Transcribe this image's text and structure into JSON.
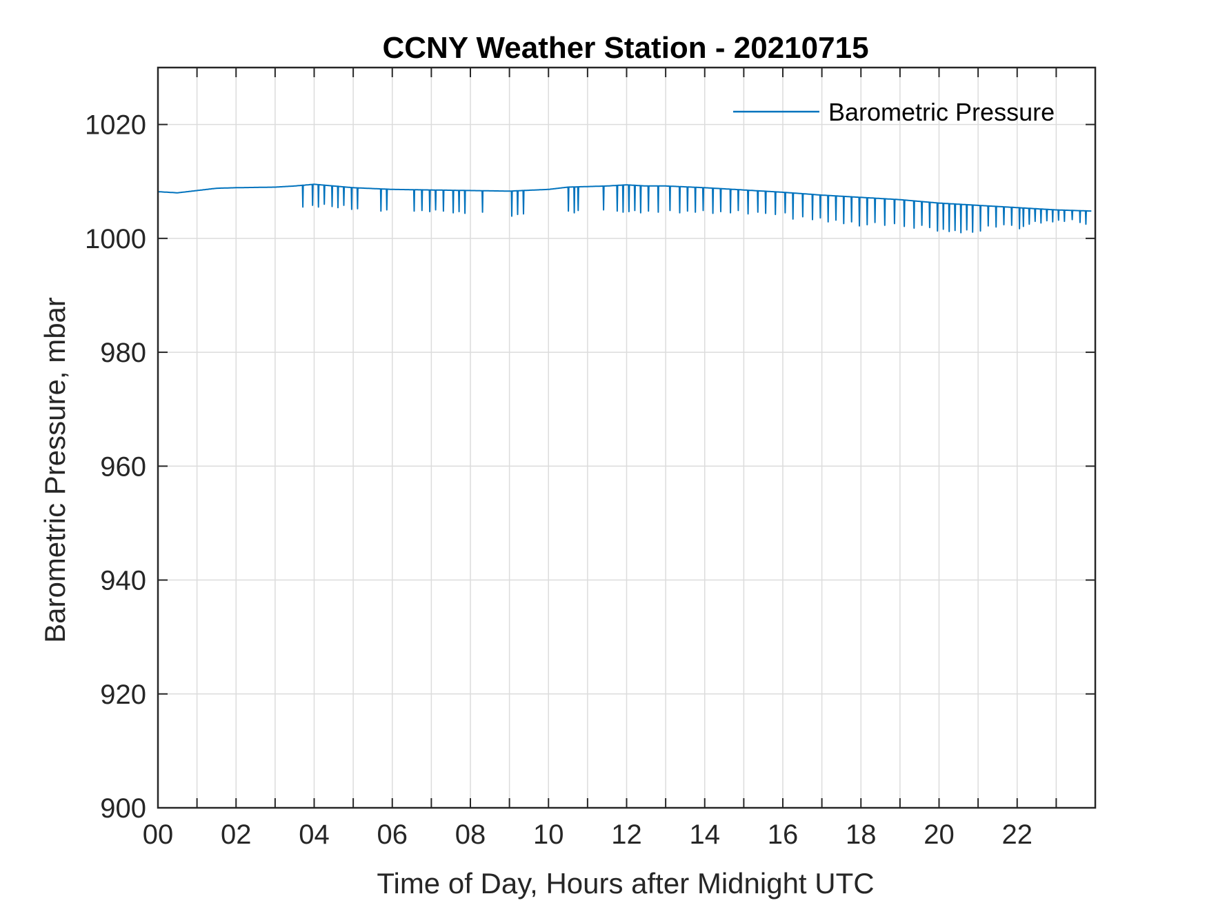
{
  "chart_data": {
    "type": "line",
    "title": "CCNY Weather Station - 20210715",
    "xlabel": "Time of Day, Hours after Midnight UTC",
    "ylabel": "Barometric Pressure, mbar",
    "xlim": [
      0,
      24
    ],
    "ylim": [
      900,
      1030
    ],
    "xticks": [
      0,
      2,
      4,
      6,
      8,
      10,
      12,
      14,
      16,
      18,
      20,
      22
    ],
    "xtick_labels": [
      "00",
      "02",
      "04",
      "06",
      "08",
      "10",
      "12",
      "14",
      "16",
      "18",
      "20",
      "22"
    ],
    "yticks": [
      900,
      920,
      940,
      960,
      980,
      1000,
      1020
    ],
    "ytick_labels": [
      "900",
      "920",
      "940",
      "960",
      "980",
      "1000",
      "1020"
    ],
    "grid": true,
    "legend_position": "top-right",
    "series": [
      {
        "name": "Barometric Pressure",
        "color": "#0072BD",
        "x": [
          0,
          0.5,
          1,
          1.5,
          2,
          3,
          3.5,
          4,
          4.5,
          5,
          6,
          7,
          8,
          9,
          10,
          10.5,
          11,
          11.5,
          12,
          12.5,
          13,
          14,
          15,
          16,
          17,
          18,
          19,
          20,
          21,
          22,
          23,
          23.9
        ],
        "values": [
          1008.2,
          1008,
          1008.4,
          1008.8,
          1008.9,
          1009,
          1009.2,
          1009.5,
          1009.2,
          1008.9,
          1008.6,
          1008.5,
          1008.4,
          1008.3,
          1008.6,
          1009,
          1009.1,
          1009.2,
          1009.4,
          1009.2,
          1009.2,
          1008.9,
          1008.5,
          1008.1,
          1007.6,
          1007.2,
          1006.8,
          1006.2,
          1005.8,
          1005.4,
          1005,
          1004.8
        ],
        "dips": [
          {
            "x": 3.7,
            "min": 1005.5
          },
          {
            "x": 3.95,
            "min": 1005.8
          },
          {
            "x": 4.1,
            "min": 1005.5
          },
          {
            "x": 4.25,
            "min": 1006
          },
          {
            "x": 4.45,
            "min": 1005.6
          },
          {
            "x": 4.6,
            "min": 1005.4
          },
          {
            "x": 4.75,
            "min": 1005.8
          },
          {
            "x": 4.95,
            "min": 1005.1
          },
          {
            "x": 5.1,
            "min": 1005.2
          },
          {
            "x": 5.7,
            "min": 1004.8
          },
          {
            "x": 5.85,
            "min": 1005
          },
          {
            "x": 6.55,
            "min": 1004.8
          },
          {
            "x": 6.75,
            "min": 1004.9
          },
          {
            "x": 6.95,
            "min": 1004.7
          },
          {
            "x": 7.1,
            "min": 1005
          },
          {
            "x": 7.3,
            "min": 1004.8
          },
          {
            "x": 7.55,
            "min": 1004.5
          },
          {
            "x": 7.7,
            "min": 1004.7
          },
          {
            "x": 7.85,
            "min": 1004.4
          },
          {
            "x": 8.3,
            "min": 1004.6
          },
          {
            "x": 9.05,
            "min": 1003.9
          },
          {
            "x": 9.2,
            "min": 1004.2
          },
          {
            "x": 9.35,
            "min": 1004.3
          },
          {
            "x": 10.5,
            "min": 1004.8
          },
          {
            "x": 10.65,
            "min": 1004.5
          },
          {
            "x": 10.75,
            "min": 1004.9
          },
          {
            "x": 11.4,
            "min": 1005
          },
          {
            "x": 11.75,
            "min": 1004.8
          },
          {
            "x": 11.9,
            "min": 1004.6
          },
          {
            "x": 12.05,
            "min": 1004.7
          },
          {
            "x": 12.2,
            "min": 1004.9
          },
          {
            "x": 12.35,
            "min": 1004.5
          },
          {
            "x": 12.55,
            "min": 1004.8
          },
          {
            "x": 12.8,
            "min": 1004.6
          },
          {
            "x": 13.1,
            "min": 1004.9
          },
          {
            "x": 13.35,
            "min": 1004.5
          },
          {
            "x": 13.55,
            "min": 1004.8
          },
          {
            "x": 13.75,
            "min": 1004.6
          },
          {
            "x": 13.95,
            "min": 1004.9
          },
          {
            "x": 14.2,
            "min": 1004.4
          },
          {
            "x": 14.4,
            "min": 1004.7
          },
          {
            "x": 14.65,
            "min": 1004.5
          },
          {
            "x": 14.85,
            "min": 1004.9
          },
          {
            "x": 15.1,
            "min": 1004.3
          },
          {
            "x": 15.35,
            "min": 1004.6
          },
          {
            "x": 15.55,
            "min": 1004.4
          },
          {
            "x": 15.8,
            "min": 1004.2
          },
          {
            "x": 16.05,
            "min": 1004.5
          },
          {
            "x": 16.25,
            "min": 1003.4
          },
          {
            "x": 16.5,
            "min": 1003.8
          },
          {
            "x": 16.75,
            "min": 1003.3
          },
          {
            "x": 16.95,
            "min": 1003.6
          },
          {
            "x": 17.15,
            "min": 1002.9
          },
          {
            "x": 17.35,
            "min": 1003.2
          },
          {
            "x": 17.55,
            "min": 1002.6
          },
          {
            "x": 17.75,
            "min": 1002.9
          },
          {
            "x": 17.95,
            "min": 1002.2
          },
          {
            "x": 18.15,
            "min": 1002.4
          },
          {
            "x": 18.35,
            "min": 1002.8
          },
          {
            "x": 18.6,
            "min": 1002.3
          },
          {
            "x": 18.85,
            "min": 1002.6
          },
          {
            "x": 19.1,
            "min": 1002.1
          },
          {
            "x": 19.35,
            "min": 1001.8
          },
          {
            "x": 19.55,
            "min": 1002.3
          },
          {
            "x": 19.75,
            "min": 1001.9
          },
          {
            "x": 19.95,
            "min": 1001.3
          },
          {
            "x": 20.1,
            "min": 1001.6
          },
          {
            "x": 20.25,
            "min": 1001.2
          },
          {
            "x": 20.4,
            "min": 1001.4
          },
          {
            "x": 20.55,
            "min": 1001
          },
          {
            "x": 20.7,
            "min": 1001.5
          },
          {
            "x": 20.85,
            "min": 1001.1
          },
          {
            "x": 21.05,
            "min": 1001.3
          },
          {
            "x": 21.25,
            "min": 1002.2
          },
          {
            "x": 21.45,
            "min": 1002
          },
          {
            "x": 21.65,
            "min": 1002.4
          },
          {
            "x": 21.85,
            "min": 1002.3
          },
          {
            "x": 22.05,
            "min": 1001.7
          },
          {
            "x": 22.15,
            "min": 1002.1
          },
          {
            "x": 22.3,
            "min": 1002.5
          },
          {
            "x": 22.45,
            "min": 1003
          },
          {
            "x": 22.6,
            "min": 1002.7
          },
          {
            "x": 22.75,
            "min": 1003.1
          },
          {
            "x": 22.9,
            "min": 1002.9
          },
          {
            "x": 23.05,
            "min": 1003.2
          },
          {
            "x": 23.2,
            "min": 1003
          },
          {
            "x": 23.4,
            "min": 1003.3
          },
          {
            "x": 23.6,
            "min": 1002.8
          },
          {
            "x": 23.75,
            "min": 1002.5
          }
        ]
      }
    ]
  }
}
